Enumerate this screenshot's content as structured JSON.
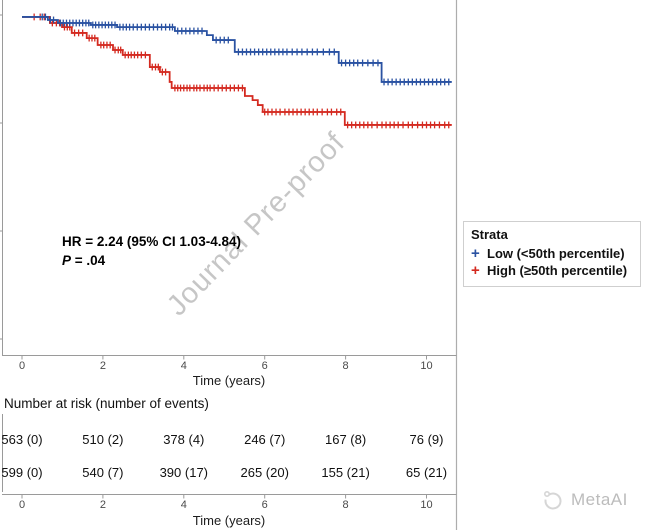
{
  "watermarks": {
    "journal": "Journal Pre-proof",
    "brand": "MetaAI"
  },
  "annotation": {
    "line1": "HR = 2.24 (95% CI 1.03-4.84)",
    "p_label": "P",
    "p_rest": " = .04"
  },
  "legend": {
    "title": "Strata",
    "items": [
      {
        "label": "Low (<50th percentile)",
        "marker": "+",
        "color": "#2a52a2"
      },
      {
        "label": "High (≥50th percentile)",
        "marker": "+",
        "color": "#d42a20"
      }
    ]
  },
  "axis": {
    "title": "Time (years)",
    "tick_labels": [
      "0",
      "2",
      "4",
      "6",
      "8",
      "10"
    ]
  },
  "risk_table": {
    "title": "Number at risk (number of events)",
    "rows": [
      {
        "values": [
          "563 (0)",
          "510 (2)",
          "378 (4)",
          "246 (7)",
          "167 (8)",
          "76 (9)"
        ]
      },
      {
        "values": [
          "599 (0)",
          "540 (7)",
          "390 (17)",
          "265 (20)",
          "155 (21)",
          "65 (21)"
        ]
      }
    ]
  },
  "chart_data": {
    "type": "line",
    "subtype": "kaplan-meier-step-curves-with-censor-marks",
    "title": "",
    "xlabel": "Time (years)",
    "ylabel": "",
    "xlim": [
      -0.5,
      10.75
    ],
    "ylim": [
      0.843,
      1.005
    ],
    "x_ticks": [
      0,
      2,
      4,
      6,
      8,
      10
    ],
    "y_ticks": [
      1.0,
      0.95,
      0.9,
      0.85
    ],
    "y_tick_labels_visible": false,
    "grid": false,
    "legend_position": "right",
    "annotation": "HR = 2.24 (95% CI 1.03-4.84), P = .04",
    "series": [
      {
        "name": "Low (<50th percentile)",
        "color": "#2a52a2",
        "steps": [
          [
            0,
            0.9991
          ],
          [
            0.64,
            0.9977
          ],
          [
            0.89,
            0.9963
          ],
          [
            1.7,
            0.9954
          ],
          [
            2.35,
            0.9944
          ],
          [
            3.78,
            0.9926
          ],
          [
            4.57,
            0.9907
          ],
          [
            4.72,
            0.9884
          ],
          [
            5.26,
            0.9829
          ],
          [
            7.83,
            0.9778
          ],
          [
            8.89,
            0.969
          ],
          [
            10.62,
            0.969
          ]
        ],
        "censor_times": [
          0.5,
          0.58,
          0.7,
          0.78,
          0.95,
          1.02,
          1.1,
          1.18,
          1.26,
          1.34,
          1.42,
          1.5,
          1.58,
          1.65,
          1.75,
          1.82,
          1.9,
          1.98,
          2.06,
          2.14,
          2.22,
          2.3,
          2.42,
          2.5,
          2.58,
          2.66,
          2.75,
          2.85,
          2.95,
          3.05,
          3.15,
          3.25,
          3.35,
          3.45,
          3.55,
          3.65,
          3.72,
          3.85,
          3.95,
          4.05,
          4.15,
          4.25,
          4.35,
          4.45,
          4.8,
          4.9,
          5.0,
          5.1,
          5.35,
          5.45,
          5.55,
          5.65,
          5.75,
          5.85,
          5.95,
          6.05,
          6.15,
          6.25,
          6.35,
          6.45,
          6.55,
          6.68,
          6.8,
          6.92,
          7.05,
          7.18,
          7.3,
          7.45,
          7.6,
          7.72,
          7.9,
          8.0,
          8.1,
          8.2,
          8.3,
          8.42,
          8.55,
          8.68,
          8.8,
          8.95,
          9.05,
          9.15,
          9.25,
          9.35,
          9.45,
          9.55,
          9.65,
          9.75,
          9.85,
          9.95,
          10.05,
          10.15,
          10.25,
          10.35,
          10.45,
          10.55
        ]
      },
      {
        "name": "High (≥50th percentile)",
        "color": "#d42a20",
        "steps": [
          [
            0,
            0.9991
          ],
          [
            0.69,
            0.9963
          ],
          [
            0.99,
            0.9944
          ],
          [
            1.23,
            0.9917
          ],
          [
            1.6,
            0.9893
          ],
          [
            1.87,
            0.9861
          ],
          [
            2.25,
            0.9838
          ],
          [
            2.49,
            0.9815
          ],
          [
            3.16,
            0.9759
          ],
          [
            3.41,
            0.9736
          ],
          [
            3.65,
            0.969
          ],
          [
            3.7,
            0.9662
          ],
          [
            5.51,
            0.9625
          ],
          [
            5.7,
            0.9606
          ],
          [
            5.83,
            0.9583
          ],
          [
            5.95,
            0.9551
          ],
          [
            7.98,
            0.9491
          ],
          [
            10.62,
            0.9491
          ]
        ],
        "censor_times": [
          0.3,
          0.45,
          0.55,
          0.75,
          0.85,
          0.93,
          1.05,
          1.12,
          1.18,
          1.3,
          1.4,
          1.5,
          1.66,
          1.73,
          1.8,
          1.95,
          2.02,
          2.1,
          2.18,
          2.3,
          2.38,
          2.44,
          2.55,
          2.63,
          2.7,
          2.78,
          2.86,
          2.95,
          3.05,
          3.22,
          3.3,
          3.37,
          3.47,
          3.55,
          3.78,
          3.85,
          3.92,
          4.0,
          4.08,
          4.15,
          4.25,
          4.32,
          4.4,
          4.5,
          4.58,
          4.65,
          4.75,
          4.85,
          4.95,
          5.05,
          5.15,
          5.25,
          5.35,
          5.45,
          6.0,
          6.08,
          6.18,
          6.28,
          6.38,
          6.5,
          6.6,
          6.7,
          6.8,
          6.9,
          7.0,
          7.1,
          7.2,
          7.3,
          7.42,
          7.55,
          7.65,
          7.78,
          7.88,
          8.05,
          8.15,
          8.25,
          8.35,
          8.45,
          8.55,
          8.65,
          8.78,
          8.9,
          9.0,
          9.1,
          9.2,
          9.3,
          9.42,
          9.55,
          9.65,
          9.78,
          9.9,
          10.0,
          10.1,
          10.2,
          10.32,
          10.45,
          10.55
        ]
      }
    ],
    "risk_table_rows": [
      [
        "563 (0)",
        "510 (2)",
        "378 (4)",
        "246 (7)",
        "167 (8)",
        "76 (9)"
      ],
      [
        "599 (0)",
        "540 (7)",
        "390 (17)",
        "265 (20)",
        "155 (21)",
        "65 (21)"
      ]
    ]
  },
  "colors": {
    "low": "#2a52a2",
    "high": "#d42a20",
    "axis_line": "#9a9a9a",
    "panel_border": "#adadad",
    "tick_label": "#4a4a4a",
    "watermark": "#c6c6c6"
  }
}
